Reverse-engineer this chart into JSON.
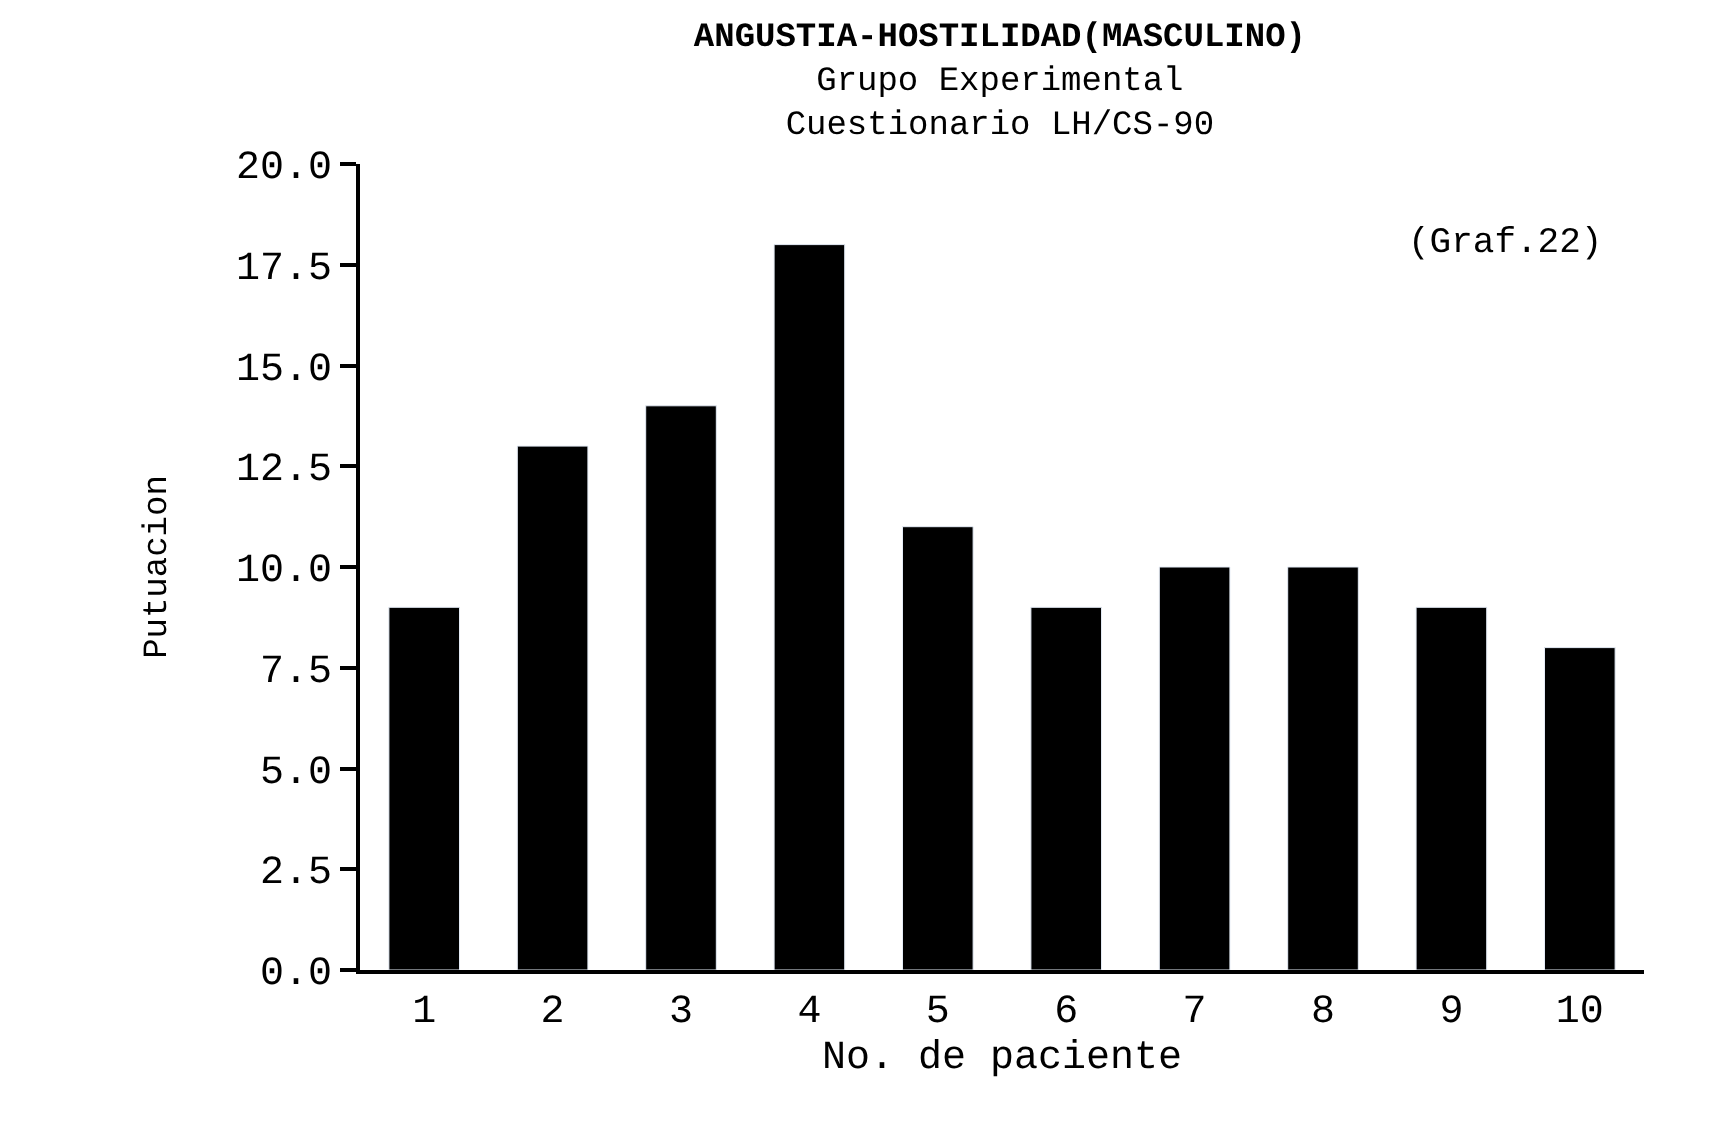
{
  "chart_data": {
    "type": "bar",
    "title": "ANGUSTIA-HOSTILIDAD(MASCULINO)",
    "subtitle": "Grupo Experimental\nCuestionario LH/CS-90",
    "xlabel": "No. de paciente",
    "ylabel": "Putuacion",
    "categories": [
      "1",
      "2",
      "3",
      "4",
      "5",
      "6",
      "7",
      "8",
      "9",
      "10"
    ],
    "values": [
      9,
      13,
      14,
      18,
      11,
      9,
      10,
      10,
      9,
      8
    ],
    "color": "#000000",
    "ylim": [
      0,
      20
    ],
    "yticks": [
      {
        "value": 0,
        "label": "0.0"
      },
      {
        "value": 2.5,
        "label": "2.5"
      },
      {
        "value": 5,
        "label": "5.0"
      },
      {
        "value": 7.5,
        "label": "7.5"
      },
      {
        "value": 10,
        "label": "10.0"
      },
      {
        "value": 12.5,
        "label": "12.5"
      },
      {
        "value": 15,
        "label": "15.0"
      },
      {
        "value": 17.5,
        "label": "17.5"
      },
      {
        "value": 20,
        "label": "20.0"
      }
    ],
    "annotations": [
      "(Graf.22)"
    ]
  }
}
